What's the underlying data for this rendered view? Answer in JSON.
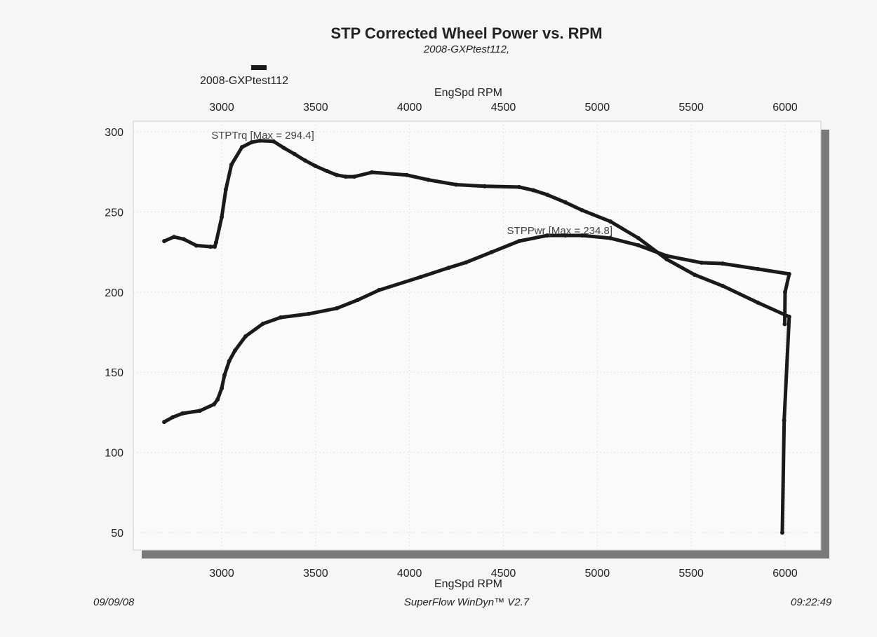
{
  "chart_data": {
    "type": "line",
    "title": "STP Corrected Wheel Power vs. RPM",
    "subtitle": "2008-GXPtest112,",
    "legend": {
      "entries": [
        "2008-GXPtest112"
      ],
      "placement": "top-left"
    },
    "xlabel_top": "EngSpd  RPM",
    "xlabel_bottom": "EngSpd  RPM",
    "xlim": [
      2450,
      6200
    ],
    "ylim": [
      35,
      305
    ],
    "x_ticks": [
      "3000",
      "3500",
      "4000",
      "4500",
      "5000",
      "5500",
      "6000"
    ],
    "x_tick_values": [
      3000,
      3500,
      4000,
      4500,
      5000,
      5500,
      6000
    ],
    "y_ticks": [
      "300",
      "250",
      "200",
      "150",
      "100",
      "50"
    ],
    "y_tick_values": [
      300,
      250,
      200,
      150,
      100,
      50
    ],
    "grid": true,
    "line_color": "#1a1a1a",
    "series": [
      {
        "name": "STPTrq",
        "annotation": "STPTrq [Max = 294.4]",
        "annotation_at": [
          3200,
          294.4
        ],
        "x": [
          2694,
          2746,
          2798,
          2865,
          2940,
          2963,
          2970,
          3000,
          3022,
          3052,
          3108,
          3160,
          3202,
          3276,
          3330,
          3389,
          3445,
          3500,
          3560,
          3613,
          3660,
          3706,
          3800,
          3986,
          4100,
          4248,
          4400,
          4584,
          4660,
          4733,
          4830,
          4920,
          5070,
          5219,
          5369,
          5518,
          5667,
          5855,
          6022,
          5995,
          5985
        ],
        "y": [
          231.8,
          234.4,
          233,
          229,
          228.3,
          228.3,
          231,
          246.7,
          264,
          279.5,
          290.4,
          293.5,
          294.4,
          294,
          290,
          286,
          282,
          278.6,
          275.5,
          273,
          272,
          272,
          274.7,
          273,
          270,
          267,
          266,
          265.5,
          263.5,
          260.7,
          256,
          251,
          244,
          233.6,
          220.5,
          210.8,
          203.9,
          193.4,
          184.6,
          120,
          50
        ]
      },
      {
        "name": "STPPwr",
        "annotation": "STPPwr [Max = 234.8]",
        "annotation_at": [
          4800,
          234.8
        ],
        "x": [
          2694,
          2740,
          2791,
          2884,
          2959,
          2978,
          3000,
          3015,
          3040,
          3071,
          3127,
          3220,
          3314,
          3463,
          3613,
          3725,
          3837,
          4061,
          4210,
          4300,
          4435,
          4584,
          4733,
          4830,
          4920,
          5070,
          5219,
          5369,
          5555,
          5667,
          5855,
          6022,
          6000,
          5998
        ],
        "y": [
          119,
          122,
          124.3,
          126,
          130,
          133,
          140,
          148.3,
          157,
          163.6,
          172.4,
          180.3,
          184.2,
          186.4,
          189.9,
          195.1,
          201.2,
          209.5,
          215.2,
          218.5,
          224.8,
          231.8,
          235.3,
          235.3,
          235.3,
          233.6,
          229.2,
          222.6,
          218.3,
          217.8,
          214.4,
          211.3,
          200,
          180
        ]
      }
    ]
  },
  "footer": {
    "date": "09/09/08",
    "software": "SuperFlow WinDyn™ V2.7",
    "time": "09:22:49"
  }
}
